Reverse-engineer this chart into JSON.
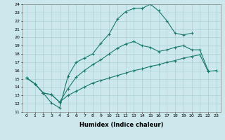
{
  "xlabel": "Humidex (Indice chaleur)",
  "xlim": [
    -0.5,
    23.5
  ],
  "ylim": [
    11,
    24
  ],
  "xticks": [
    0,
    1,
    2,
    3,
    4,
    5,
    6,
    7,
    8,
    9,
    10,
    11,
    12,
    13,
    14,
    15,
    16,
    17,
    18,
    19,
    20,
    21,
    22,
    23
  ],
  "yticks": [
    11,
    12,
    13,
    14,
    15,
    16,
    17,
    18,
    19,
    20,
    21,
    22,
    23,
    24
  ],
  "bg_color": "#cce8ec",
  "line_color": "#1a7a6e",
  "grid_color": "#aad0d4",
  "line1_x": [
    0,
    1,
    2,
    3,
    4,
    5,
    6,
    7,
    8,
    9,
    10,
    11,
    12,
    13,
    14,
    15,
    16,
    17,
    18,
    19,
    20
  ],
  "line1_y": [
    15.1,
    14.4,
    13.3,
    12.1,
    11.5,
    15.3,
    17.0,
    17.5,
    18.0,
    19.3,
    20.4,
    22.2,
    23.1,
    23.5,
    23.5,
    24.0,
    23.2,
    22.0,
    20.5,
    20.3,
    20.5
  ],
  "line2_x": [
    0,
    1,
    2,
    3,
    4,
    5,
    6,
    7,
    8,
    9,
    10,
    11,
    12,
    13,
    14,
    15,
    16,
    17,
    18,
    19,
    20,
    21,
    22
  ],
  "line2_y": [
    15.1,
    14.4,
    13.3,
    13.1,
    12.2,
    13.8,
    15.2,
    16.0,
    16.7,
    17.3,
    18.0,
    18.7,
    19.2,
    19.5,
    19.0,
    18.8,
    18.3,
    18.5,
    18.8,
    19.0,
    18.5,
    18.5,
    16.0
  ],
  "line3_x": [
    0,
    1,
    2,
    3,
    4,
    5,
    6,
    7,
    8,
    9,
    10,
    11,
    12,
    13,
    14,
    15,
    16,
    17,
    18,
    19,
    20,
    21,
    22,
    23
  ],
  "line3_y": [
    15.1,
    14.4,
    13.3,
    13.1,
    12.2,
    13.0,
    13.5,
    14.0,
    14.5,
    14.8,
    15.1,
    15.4,
    15.7,
    16.0,
    16.2,
    16.5,
    16.7,
    17.0,
    17.2,
    17.5,
    17.7,
    17.9,
    15.9,
    16.0
  ]
}
